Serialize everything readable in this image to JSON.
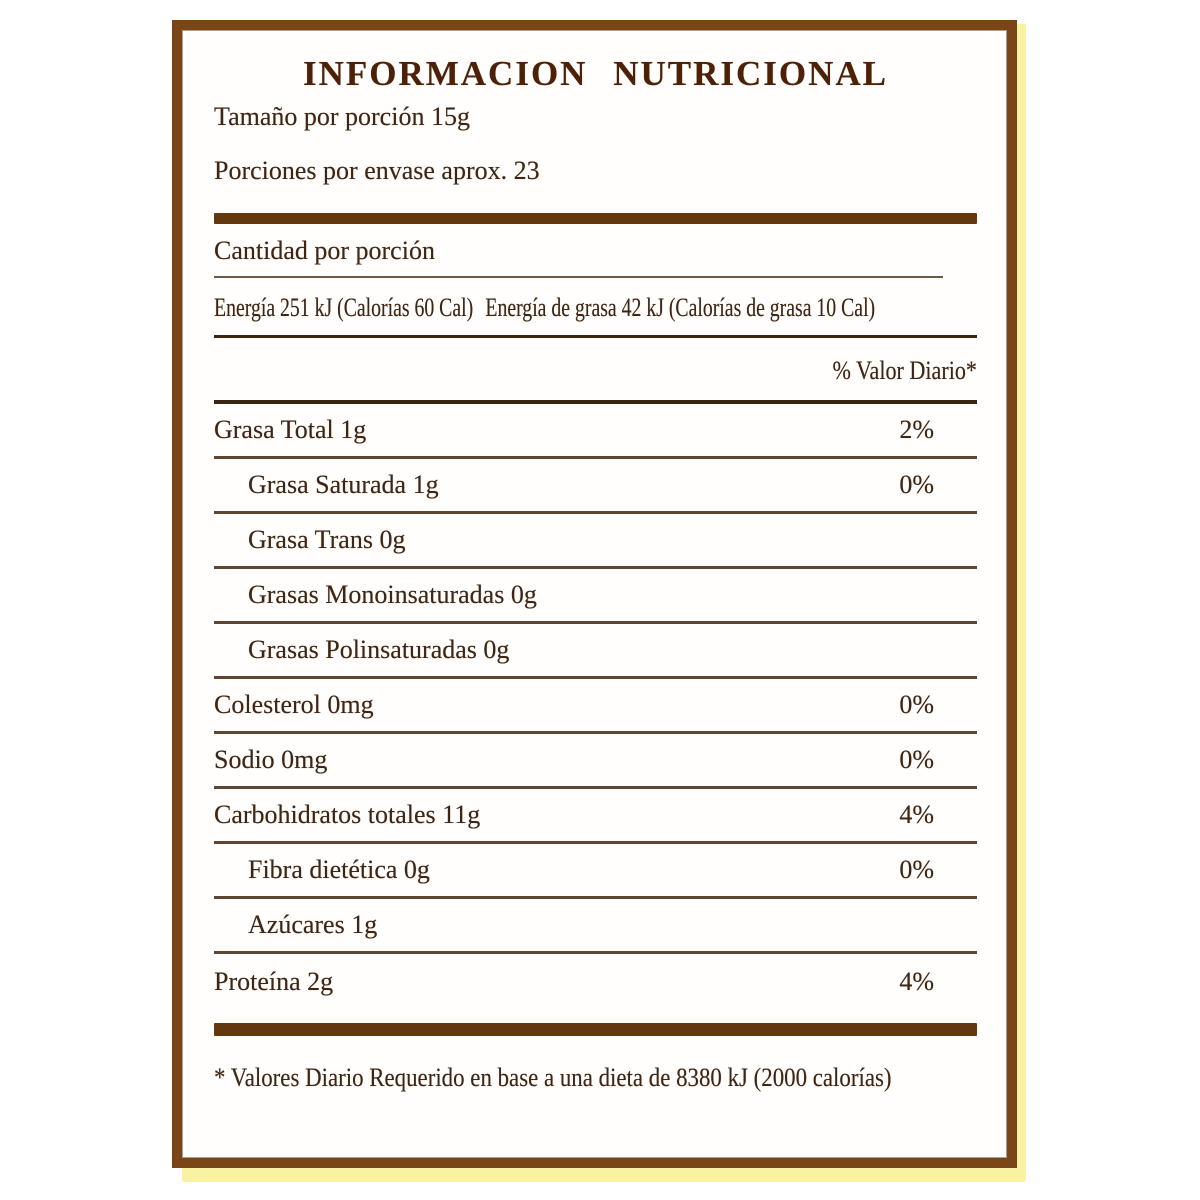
{
  "colors": {
    "page_bg": "#ffffff",
    "panel_bg": "#fffefc",
    "border_brown": "#7a4517",
    "shadow_yellow": "#f8f2a2",
    "bar_brown": "#64380f",
    "separator": "#5d4732",
    "dark_line": "#3c250e",
    "thin_line": "#6b5a49",
    "text_brown": "#3f2614",
    "title_brown": "#4d2008"
  },
  "label": {
    "title": "INFORMACION NUTRICIONAL",
    "serving_size": "Tamaño por porción 15g",
    "servings_per_container": "Porciones por envase aprox. 23",
    "amount_header": "Cantidad por porción",
    "energy": "Energía 251 kJ (Calorías 60 Cal)",
    "energy_fat": "Energía de grasa 42 kJ (Calorías de grasa 10 Cal)",
    "daily_value_header": "% Valor Diario*",
    "rows": [
      {
        "name": "Grasa Total 1g",
        "dv": "2%"
      },
      {
        "name": "Grasa Saturada 1g",
        "dv": "0%"
      },
      {
        "name": "Grasa Trans 0g",
        "dv": ""
      },
      {
        "name": "Grasas Monoinsaturadas 0g",
        "dv": ""
      },
      {
        "name": "Grasas Polinsaturadas 0g",
        "dv": ""
      },
      {
        "name": "Colesterol 0mg",
        "dv": "0%"
      },
      {
        "name": "Sodio 0mg",
        "dv": "0%"
      },
      {
        "name": "Carbohidratos totales 11g",
        "dv": "4%"
      },
      {
        "name": "Fibra dietética 0g",
        "dv": "0%"
      },
      {
        "name": "Azúcares  1g",
        "dv": ""
      },
      {
        "name": "Proteína 2g",
        "dv": "4%"
      }
    ],
    "footnote": "* Valores Diario Requerido en base a una dieta de 8380 kJ (2000 calorías)"
  }
}
